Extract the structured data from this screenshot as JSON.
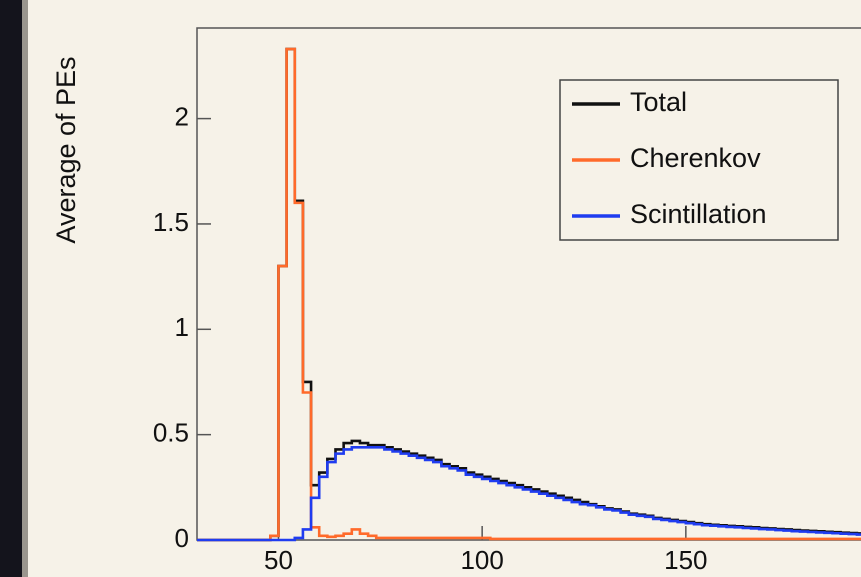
{
  "chart_data": {
    "type": "line",
    "y_label": "Average of PEs",
    "x": [
      30,
      32,
      34,
      36,
      38,
      40,
      42,
      44,
      46,
      48,
      50,
      52,
      54,
      56,
      58,
      60,
      62,
      64,
      66,
      68,
      70,
      72,
      74,
      76,
      78,
      80,
      82,
      84,
      86,
      88,
      90,
      92,
      94,
      96,
      98,
      100,
      102,
      104,
      106,
      108,
      110,
      112,
      114,
      116,
      118,
      120,
      122,
      124,
      126,
      128,
      130,
      132,
      134,
      136,
      138,
      140,
      142,
      144,
      146,
      148,
      150,
      152,
      154,
      156,
      158,
      160,
      162,
      164,
      166,
      168,
      170,
      172,
      174,
      176,
      178,
      180,
      182,
      184,
      186,
      188,
      190,
      192
    ],
    "series": [
      {
        "name": "Total",
        "color": "#111111",
        "values": [
          0,
          0,
          0,
          0,
          0,
          0,
          0,
          0,
          0,
          0.02,
          1.3,
          2.33,
          1.61,
          0.75,
          0.26,
          0.32,
          0.385,
          0.43,
          0.46,
          0.47,
          0.46,
          0.45,
          0.45,
          0.44,
          0.43,
          0.42,
          0.41,
          0.4,
          0.39,
          0.38,
          0.36,
          0.35,
          0.34,
          0.32,
          0.31,
          0.3,
          0.29,
          0.28,
          0.27,
          0.26,
          0.25,
          0.24,
          0.23,
          0.22,
          0.21,
          0.2,
          0.19,
          0.18,
          0.17,
          0.16,
          0.15,
          0.145,
          0.135,
          0.125,
          0.12,
          0.115,
          0.105,
          0.1,
          0.095,
          0.09,
          0.085,
          0.08,
          0.075,
          0.072,
          0.07,
          0.067,
          0.065,
          0.062,
          0.06,
          0.057,
          0.055,
          0.052,
          0.05,
          0.047,
          0.045,
          0.043,
          0.041,
          0.039,
          0.037,
          0.035,
          0.033,
          0.031
        ]
      },
      {
        "name": "Cherenkov",
        "color": "#ff6a2a",
        "values": [
          0,
          0,
          0,
          0,
          0,
          0,
          0,
          0,
          0,
          0.02,
          1.3,
          2.33,
          1.6,
          0.7,
          0.06,
          0.02,
          0.015,
          0.02,
          0.03,
          0.05,
          0.03,
          0.02,
          0.01,
          0.01,
          0.01,
          0.01,
          0.01,
          0.01,
          0.01,
          0.01,
          0.01,
          0.01,
          0.01,
          0.01,
          0.01,
          0.01,
          0.005,
          0.005,
          0.005,
          0.005,
          0.005,
          0.005,
          0.005,
          0.005,
          0.005,
          0.005,
          0.005,
          0.005,
          0.005,
          0.005,
          0.005,
          0.005,
          0.005,
          0.005,
          0.005,
          0.005,
          0.005,
          0.005,
          0.005,
          0.005,
          0.005,
          0.005,
          0.005,
          0.005,
          0.005,
          0.005,
          0.005,
          0.005,
          0.005,
          0.005,
          0.005,
          0.005,
          0.005,
          0.005,
          0.005,
          0.005,
          0.005,
          0.005,
          0.005,
          0.005,
          0.005,
          0.005
        ]
      },
      {
        "name": "Scintillation",
        "color": "#1f3cf0",
        "values": [
          0,
          0,
          0,
          0,
          0,
          0,
          0,
          0,
          0,
          0,
          0,
          0,
          0.01,
          0.05,
          0.2,
          0.3,
          0.37,
          0.41,
          0.43,
          0.44,
          0.44,
          0.44,
          0.44,
          0.43,
          0.42,
          0.41,
          0.4,
          0.39,
          0.38,
          0.37,
          0.35,
          0.34,
          0.33,
          0.31,
          0.3,
          0.29,
          0.28,
          0.27,
          0.26,
          0.25,
          0.24,
          0.23,
          0.22,
          0.21,
          0.2,
          0.19,
          0.18,
          0.17,
          0.165,
          0.155,
          0.145,
          0.14,
          0.13,
          0.12,
          0.115,
          0.11,
          0.1,
          0.095,
          0.09,
          0.085,
          0.08,
          0.075,
          0.07,
          0.068,
          0.065,
          0.062,
          0.06,
          0.057,
          0.055,
          0.052,
          0.05,
          0.047,
          0.045,
          0.042,
          0.04,
          0.038,
          0.036,
          0.034,
          0.032,
          0.03,
          0.028,
          0.026
        ]
      }
    ],
    "xlim": [
      30,
      193
    ],
    "ylim": [
      0,
      2.43
    ],
    "xticks": [
      50,
      100,
      150
    ],
    "yticks": [
      0,
      0.5,
      1,
      1.5,
      2
    ],
    "legend": "upper right"
  }
}
